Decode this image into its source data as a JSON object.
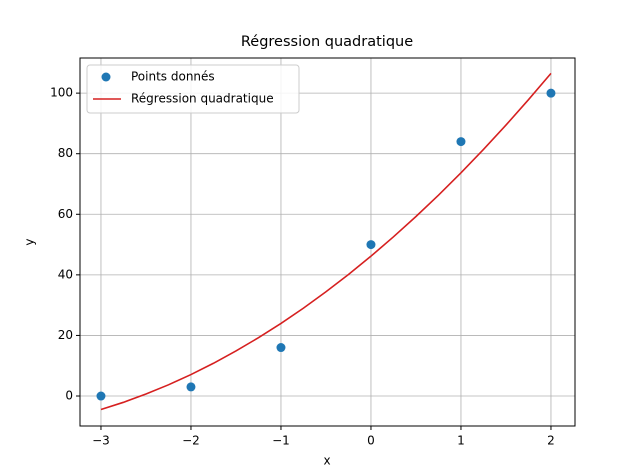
{
  "chart_data": {
    "type": "scatter",
    "title": "Régression quadratique",
    "x_label": "x",
    "y_label": "y",
    "series": [
      {
        "name": "Points donnés",
        "type": "scatter",
        "color": "#1f77b4",
        "x": [
          -3,
          -2,
          -1,
          0,
          1,
          2
        ],
        "values": [
          0,
          3,
          16,
          50,
          84,
          100
        ]
      },
      {
        "name": "Régression quadratique",
        "type": "line",
        "color": "#d62020",
        "x": [
          -3,
          -2.75,
          -2.5,
          -2.25,
          -2,
          -1.75,
          -1.5,
          -1.25,
          -1,
          -0.75,
          -0.5,
          -0.25,
          0,
          0.25,
          0.5,
          0.75,
          1,
          1.25,
          1.5,
          1.75,
          2
        ],
        "values": [
          -4.46,
          -2.08,
          0.65,
          3.7,
          7.09,
          10.81,
          14.87,
          19.25,
          23.97,
          29.02,
          34.41,
          40.12,
          46.17,
          52.56,
          59.27,
          66.32,
          73.69,
          81.41,
          89.45,
          97.83,
          106.53
        ]
      }
    ],
    "xlim": [
      -3.233,
      2.267
    ],
    "ylim": [
      -9.9,
      111.6
    ],
    "xticks": [
      {
        "value": -3,
        "label": "−3"
      },
      {
        "value": -2,
        "label": "−2"
      },
      {
        "value": -1,
        "label": "−1"
      },
      0,
      1,
      2
    ],
    "yticks": [
      0,
      20,
      40,
      60,
      80,
      100
    ],
    "grid": true,
    "legend": "upper-left"
  }
}
